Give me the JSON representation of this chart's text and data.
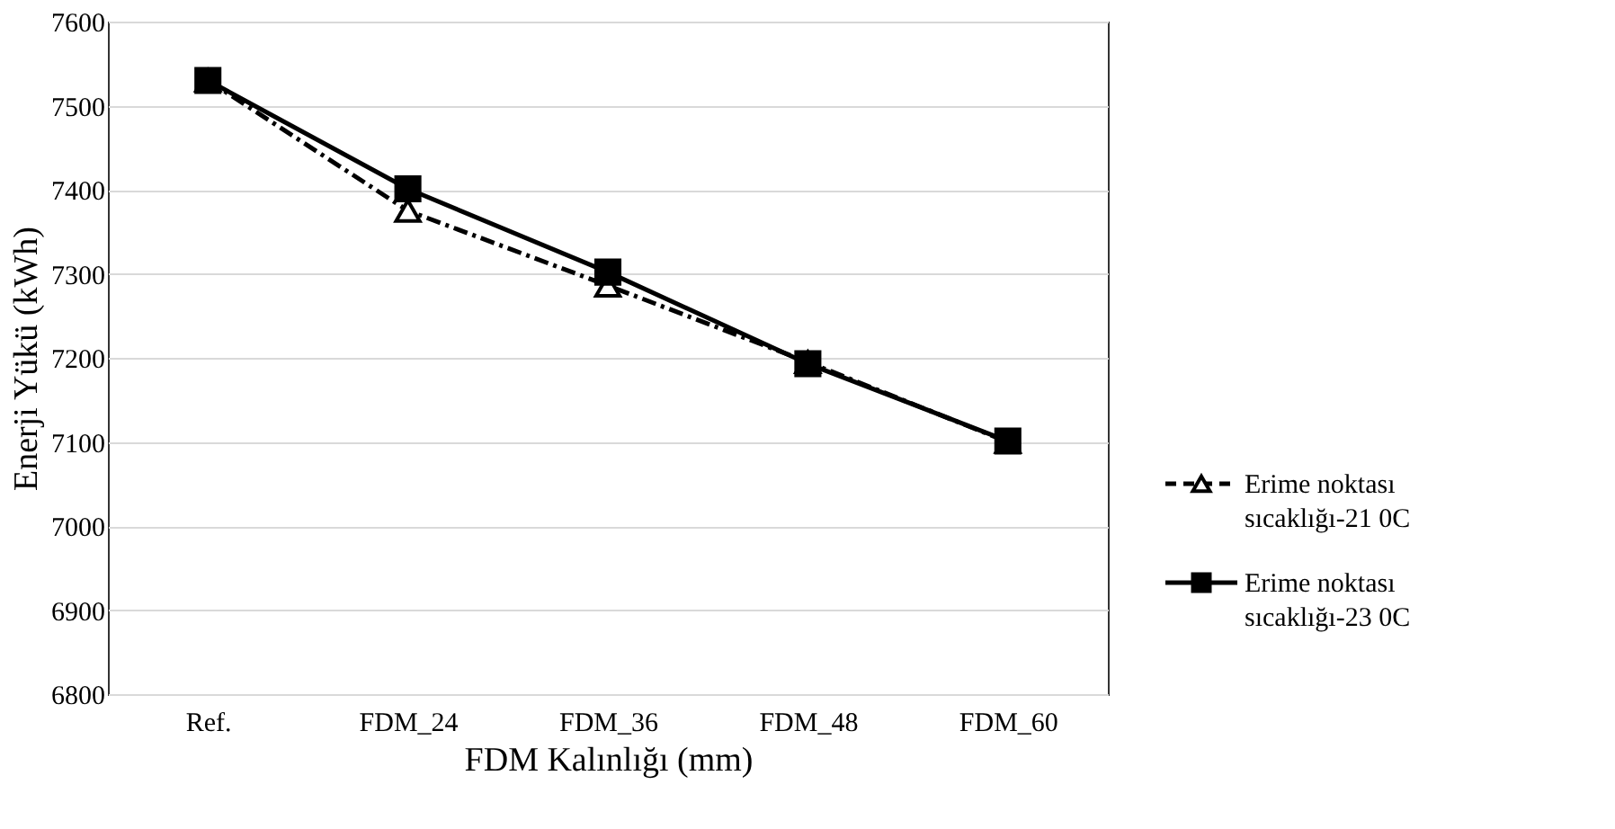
{
  "chart_data": {
    "type": "line",
    "xlabel": "FDM Kalınlığı  (mm)",
    "ylabel": "Enerji Yükü (kWh)",
    "categories": [
      "Ref.",
      "FDM_24",
      "FDM_36",
      "FDM_48",
      "FDM_60"
    ],
    "series": [
      {
        "name": "Erime noktası sıcaklığı-21 0C",
        "color": "#000000",
        "marker": "triangle",
        "line_style": "dashed",
        "values": [
          7530,
          7375,
          7286,
          7195,
          7100
        ]
      },
      {
        "name": "Erime noktası sıcaklığı-23 0C",
        "color": "#000000",
        "marker": "square",
        "line_style": "solid",
        "values": [
          7530,
          7401,
          7302,
          7193,
          7101
        ]
      }
    ],
    "ylim": [
      6800,
      7600
    ],
    "yticks": [
      6800,
      6900,
      7000,
      7100,
      7200,
      7300,
      7400,
      7500,
      7600
    ],
    "grid": "y",
    "legend": "right"
  }
}
